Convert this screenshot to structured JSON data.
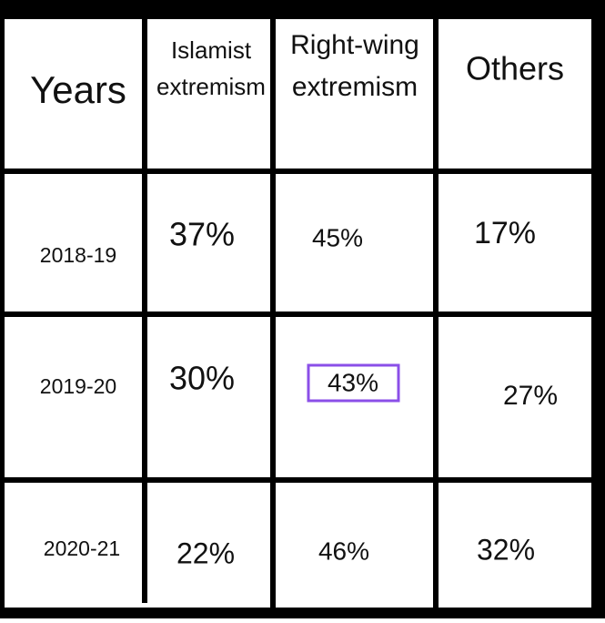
{
  "table": {
    "header": [
      "Years",
      [
        "Islamist",
        "extremism"
      ],
      [
        "Right-wing",
        "extremism"
      ],
      "Others"
    ],
    "rows": [
      [
        "2018-19",
        "37%",
        "45%",
        "17%"
      ],
      [
        "2019-20",
        "30%",
        "43%",
        "27%"
      ],
      [
        "2020-21",
        "22%",
        "46%",
        "32%"
      ]
    ]
  }
}
